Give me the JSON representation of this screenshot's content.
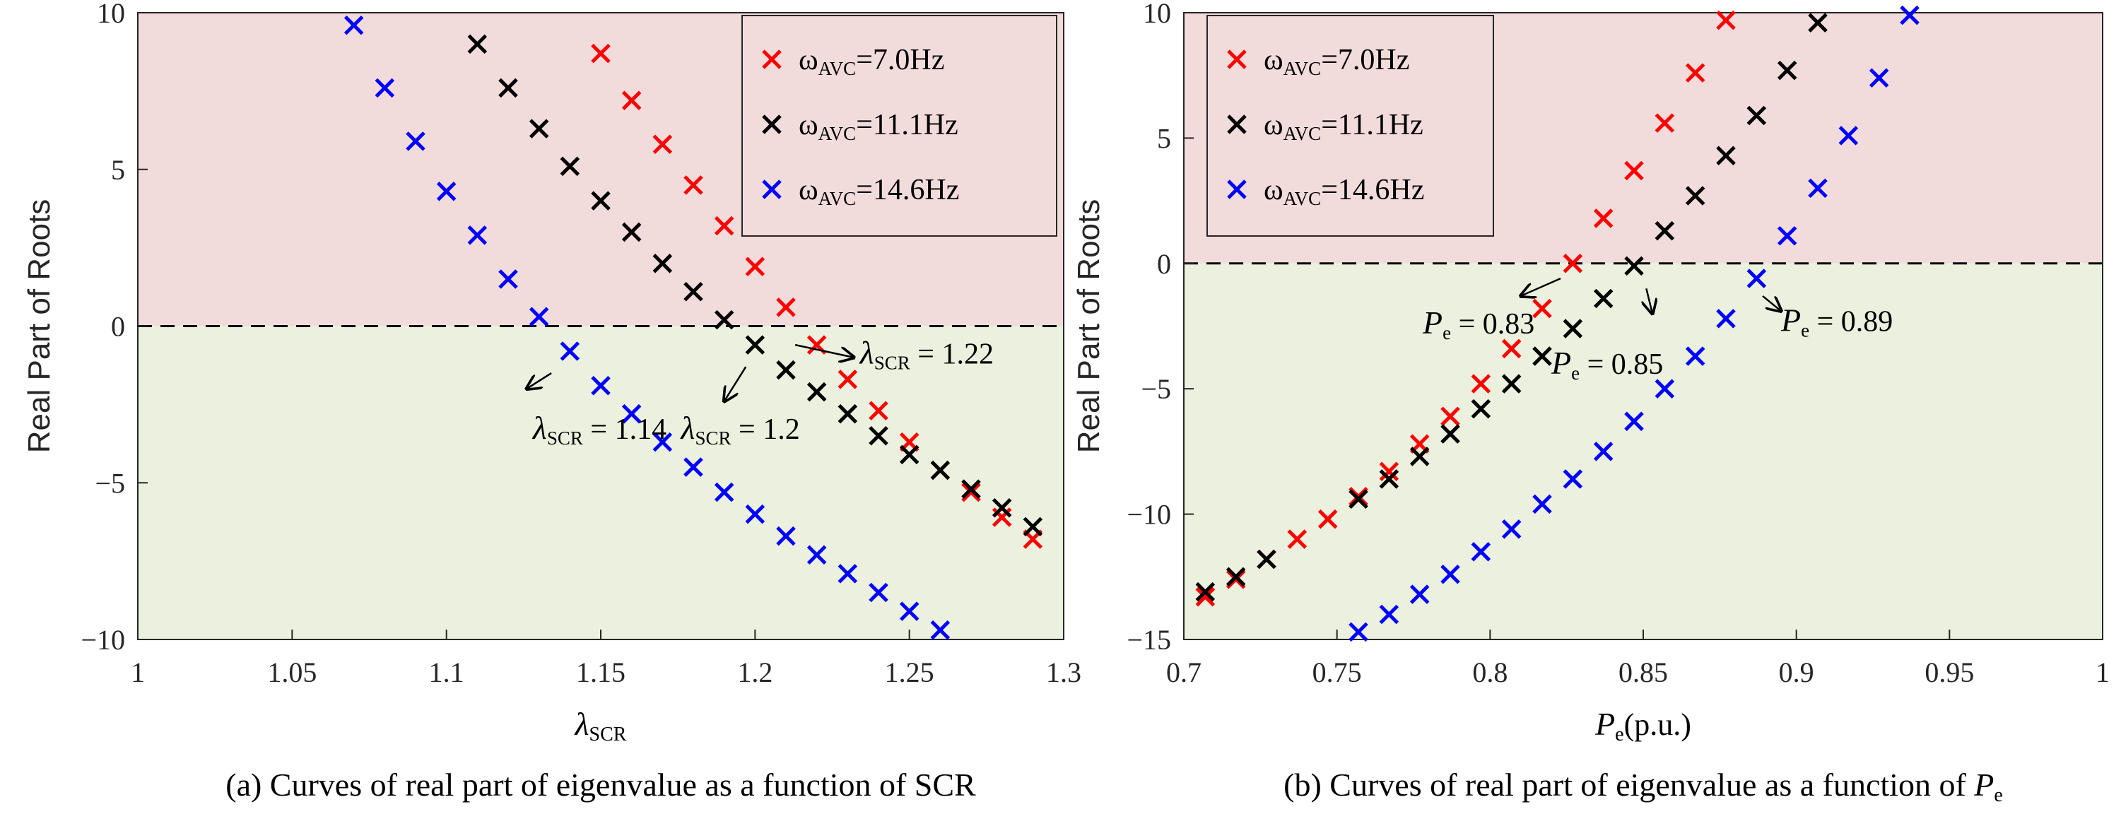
{
  "chart_data": [
    {
      "type": "scatter",
      "xlabel": "λ",
      "xlabel_sub": "SCR",
      "ylabel": "Real Part of Roots",
      "xlim": [
        1,
        1.3
      ],
      "ylim": [
        -10,
        10
      ],
      "xticks": [
        1,
        1.05,
        1.1,
        1.15,
        1.2,
        1.25,
        1.3
      ],
      "xtick_labels": [
        "1",
        "1.05",
        "1.1",
        "1.15",
        "1.2",
        "1.25",
        "1.3"
      ],
      "yticks": [
        -10,
        -5,
        0,
        5,
        10
      ],
      "ytick_labels": [
        "−10",
        "−5",
        "0",
        "5",
        "10"
      ],
      "legend_position": "top-right",
      "threshold_line": 0,
      "regions": {
        "unstable_color": "#f2dcdb",
        "stable_color": "#ebf1de"
      },
      "caption": "(a) Curves of real part of eigenvalue as a function of SCR",
      "series": [
        {
          "name": "ω",
          "name_sub": "AVC",
          "name_rest": "=7.0Hz",
          "color": "#ff0000",
          "x": [
            1.15,
            1.16,
            1.17,
            1.18,
            1.19,
            1.2,
            1.21,
            1.22,
            1.23,
            1.24,
            1.25,
            1.26,
            1.27,
            1.28,
            1.29
          ],
          "y": [
            8.7,
            7.2,
            5.8,
            4.5,
            3.2,
            1.9,
            0.6,
            -0.6,
            -1.7,
            -2.7,
            -3.7,
            -4.6,
            -5.3,
            -6.1,
            -6.8
          ]
        },
        {
          "name": "ω",
          "name_sub": "AVC",
          "name_rest": "=11.1Hz",
          "color": "#000000",
          "x": [
            1.11,
            1.12,
            1.13,
            1.14,
            1.15,
            1.16,
            1.17,
            1.18,
            1.19,
            1.2,
            1.21,
            1.22,
            1.23,
            1.24,
            1.25,
            1.26,
            1.27,
            1.28,
            1.29
          ],
          "y": [
            9.0,
            7.6,
            6.3,
            5.1,
            4.0,
            3.0,
            2.0,
            1.1,
            0.2,
            -0.6,
            -1.4,
            -2.1,
            -2.8,
            -3.5,
            -4.1,
            -4.6,
            -5.2,
            -5.8,
            -6.4
          ]
        },
        {
          "name": "ω",
          "name_sub": "AVC",
          "name_rest": "=14.6Hz",
          "color": "#0000ff",
          "x": [
            1.07,
            1.08,
            1.09,
            1.1,
            1.11,
            1.12,
            1.13,
            1.14,
            1.15,
            1.16,
            1.17,
            1.18,
            1.19,
            1.2,
            1.21,
            1.22,
            1.23,
            1.24,
            1.25,
            1.26
          ],
          "y": [
            9.6,
            7.6,
            5.9,
            4.3,
            2.9,
            1.5,
            0.3,
            -0.8,
            -1.9,
            -2.8,
            -3.7,
            -4.5,
            -5.3,
            -6.0,
            -6.7,
            -7.3,
            -7.9,
            -8.5,
            -9.1,
            -9.7
          ]
        }
      ],
      "annotations": [
        {
          "text": "λ",
          "sub": "SCR",
          "rest": " = 1.14",
          "x": 1.128,
          "y": -3.6,
          "arrow_from": [
            1.134,
            -1.5
          ],
          "arrow_to": [
            1.126,
            -2.0
          ]
        },
        {
          "text": "λ",
          "sub": "SCR",
          "rest": " = 1.2",
          "x": 1.176,
          "y": -3.6,
          "arrow_from": [
            1.197,
            -1.3
          ],
          "arrow_to": [
            1.19,
            -2.4
          ]
        },
        {
          "text": "λ",
          "sub": "SCR",
          "rest": " = 1.22",
          "x": 1.234,
          "y": -1.2,
          "arrow_from": [
            1.213,
            -0.6
          ],
          "arrow_to": [
            1.232,
            -1.0
          ]
        }
      ]
    },
    {
      "type": "scatter",
      "xlabel": "P",
      "xlabel_sub": "e",
      "xlabel_rest": "(p.u.)",
      "ylabel": "Real Part of Roots",
      "xlim": [
        0.7,
        1
      ],
      "ylim": [
        -15,
        10
      ],
      "xticks": [
        0.7,
        0.75,
        0.8,
        0.85,
        0.9,
        0.95,
        1
      ],
      "xtick_labels": [
        "0.7",
        "0.75",
        "0.8",
        "0.85",
        "0.9",
        "0.95",
        "1"
      ],
      "yticks": [
        -15,
        -10,
        -5,
        0,
        5,
        10
      ],
      "ytick_labels": [
        "−15",
        "−10",
        "−5",
        "0",
        "5",
        "10"
      ],
      "legend_position": "top-left",
      "threshold_line": 0,
      "regions": {
        "unstable_color": "#f2dcdb",
        "stable_color": "#ebf1de"
      },
      "caption_main": "(b) Curves of real part of eigenvalue as a function of ",
      "caption_var": "P",
      "caption_sub": "e",
      "series": [
        {
          "name": "ω",
          "name_sub": "AVC",
          "name_rest": "=7.0Hz",
          "color": "#ff0000",
          "x": [
            0.707,
            0.717,
            0.727,
            0.737,
            0.747,
            0.757,
            0.767,
            0.777,
            0.787,
            0.797,
            0.807,
            0.817,
            0.827,
            0.837,
            0.847,
            0.857,
            0.867,
            0.877
          ],
          "y": [
            -13.3,
            -12.6,
            -11.8,
            -11.0,
            -10.2,
            -9.3,
            -8.3,
            -7.2,
            -6.1,
            -4.8,
            -3.4,
            -1.8,
            0.0,
            1.8,
            3.7,
            5.6,
            7.6,
            9.7
          ]
        },
        {
          "name": "ω",
          "name_sub": "AVC",
          "name_rest": "=11.1Hz",
          "color": "#000000",
          "x": [
            0.707,
            0.717,
            0.727,
            0.757,
            0.767,
            0.777,
            0.787,
            0.797,
            0.807,
            0.817,
            0.827,
            0.837,
            0.847,
            0.857,
            0.867,
            0.877,
            0.887,
            0.897,
            0.907
          ],
          "y": [
            -13.1,
            -12.5,
            -11.8,
            -9.4,
            -8.6,
            -7.7,
            -6.8,
            -5.8,
            -4.8,
            -3.7,
            -2.6,
            -1.4,
            -0.1,
            1.3,
            2.7,
            4.3,
            5.9,
            7.7,
            9.6
          ]
        },
        {
          "name": "ω",
          "name_sub": "AVC",
          "name_rest": "=14.6Hz",
          "color": "#0000ff",
          "x": [
            0.757,
            0.767,
            0.777,
            0.787,
            0.797,
            0.807,
            0.817,
            0.827,
            0.837,
            0.847,
            0.857,
            0.867,
            0.877,
            0.887,
            0.897,
            0.907,
            0.917,
            0.927,
            0.937
          ],
          "y": [
            -14.7,
            -14.0,
            -13.2,
            -12.4,
            -11.5,
            -10.6,
            -9.6,
            -8.6,
            -7.5,
            -6.3,
            -5.0,
            -3.7,
            -2.2,
            -0.6,
            1.1,
            3.0,
            5.1,
            7.4,
            9.9
          ]
        }
      ],
      "annotations": [
        {
          "text": "P",
          "sub": "e",
          "rest": " = 0.83",
          "x": 0.778,
          "y": -2.8,
          "arrow_from": [
            0.823,
            -0.6
          ],
          "arrow_to": [
            0.81,
            -1.3
          ]
        },
        {
          "text": "P",
          "sub": "e",
          "rest": " = 0.85",
          "x": 0.82,
          "y": -4.4,
          "arrow_from": [
            0.851,
            -1.0
          ],
          "arrow_to": [
            0.853,
            -2.0
          ]
        },
        {
          "text": "P",
          "sub": "e",
          "rest": " = 0.89",
          "x": 0.895,
          "y": -2.7,
          "arrow_from": [
            0.889,
            -1.3
          ],
          "arrow_to": [
            0.895,
            -1.9
          ]
        }
      ]
    }
  ]
}
